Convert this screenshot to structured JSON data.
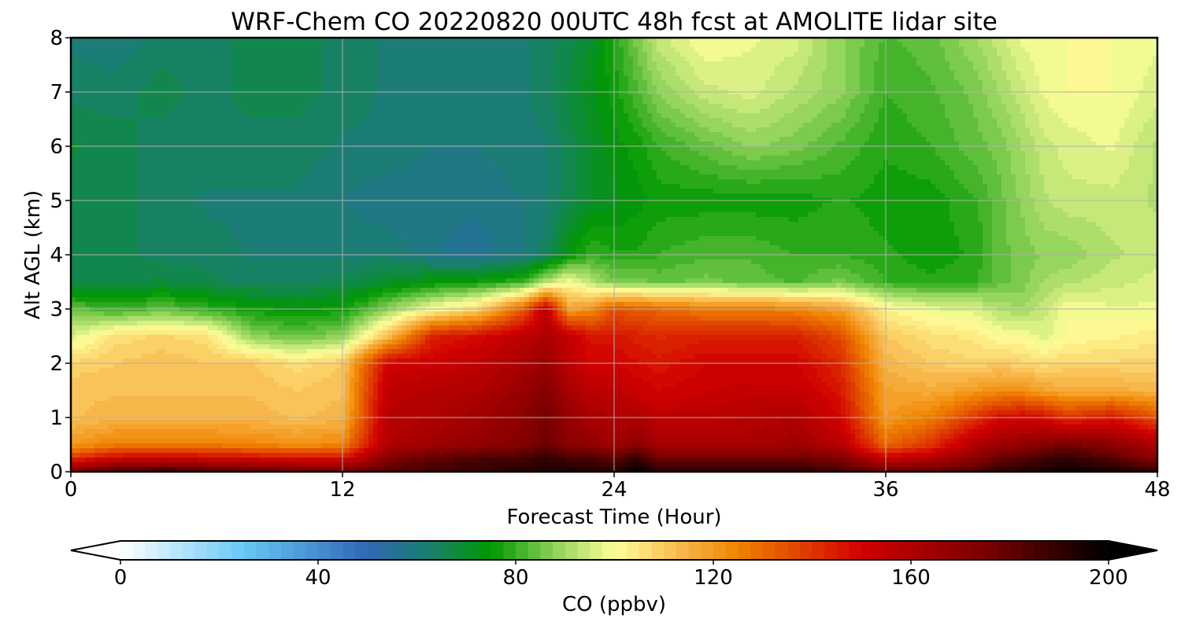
{
  "chart_data": {
    "type": "heatmap",
    "title": "WRF-Chem CO  20220820 00UTC 48h fcst at AMOLITE lidar site",
    "xlabel": "Forecast Time (Hour)",
    "ylabel": "Alt AGL (km)",
    "xlim": [
      0,
      48
    ],
    "ylim": [
      0,
      8
    ],
    "xticks": [
      0,
      12,
      24,
      36,
      48
    ],
    "yticks": [
      0,
      1,
      2,
      3,
      4,
      5,
      6,
      7,
      8
    ],
    "grid": true,
    "colorbar": {
      "label": "CO  (ppbv)",
      "range": [
        0,
        200
      ],
      "ticks": [
        0,
        40,
        80,
        120,
        160,
        200
      ],
      "extend": "both",
      "stops": [
        {
          "v": 0,
          "c": "#ffffff"
        },
        {
          "v": 25,
          "c": "#66c8f5"
        },
        {
          "v": 50,
          "c": "#2f68b5"
        },
        {
          "v": 62,
          "c": "#1b7e72"
        },
        {
          "v": 75,
          "c": "#009900"
        },
        {
          "v": 88,
          "c": "#8fd25a"
        },
        {
          "v": 100,
          "c": "#ffff99"
        },
        {
          "v": 112,
          "c": "#f9bf55"
        },
        {
          "v": 125,
          "c": "#f08300"
        },
        {
          "v": 150,
          "c": "#d10000"
        },
        {
          "v": 175,
          "c": "#7a0000"
        },
        {
          "v": 200,
          "c": "#000000"
        }
      ]
    },
    "x": [
      0,
      2,
      4,
      6,
      8,
      10,
      12,
      14,
      16,
      18,
      20,
      21,
      22,
      23,
      24,
      25,
      26,
      28,
      30,
      32,
      34,
      36,
      38,
      40,
      41,
      42,
      43,
      44,
      46,
      48
    ],
    "y": [
      0,
      0.25,
      0.5,
      1,
      1.5,
      2,
      2.5,
      3,
      3.5,
      4,
      5,
      6,
      7,
      8
    ],
    "z": [
      [
        175,
        186,
        190,
        186,
        183,
        180,
        178,
        183,
        187,
        190,
        192,
        194,
        194,
        194,
        192,
        200,
        191,
        190,
        190,
        191,
        188,
        180,
        180,
        186,
        190,
        192,
        195,
        198,
        196,
        190
      ],
      [
        140,
        150,
        152,
        150,
        148,
        146,
        146,
        172,
        180,
        184,
        186,
        190,
        186,
        184,
        180,
        190,
        178,
        176,
        176,
        178,
        172,
        152,
        158,
        170,
        178,
        182,
        186,
        190,
        182,
        170
      ],
      [
        120,
        126,
        126,
        126,
        124,
        122,
        124,
        160,
        164,
        168,
        172,
        178,
        170,
        168,
        164,
        170,
        162,
        162,
        162,
        164,
        158,
        130,
        140,
        160,
        165,
        168,
        172,
        176,
        170,
        160
      ],
      [
        112,
        114,
        114,
        114,
        114,
        112,
        114,
        158,
        160,
        164,
        170,
        176,
        166,
        162,
        160,
        160,
        156,
        156,
        158,
        160,
        150,
        120,
        126,
        140,
        148,
        150,
        148,
        140,
        146,
        134
      ],
      [
        112,
        112,
        112,
        112,
        112,
        110,
        112,
        156,
        158,
        160,
        166,
        172,
        162,
        156,
        156,
        152,
        150,
        152,
        154,
        154,
        146,
        118,
        116,
        120,
        122,
        122,
        118,
        116,
        116,
        114
      ],
      [
        108,
        110,
        112,
        110,
        110,
        106,
        110,
        150,
        152,
        156,
        162,
        166,
        156,
        150,
        150,
        148,
        146,
        150,
        150,
        150,
        142,
        114,
        110,
        108,
        110,
        108,
        106,
        108,
        108,
        108
      ],
      [
        96,
        106,
        108,
        106,
        88,
        84,
        88,
        112,
        144,
        148,
        156,
        160,
        154,
        146,
        146,
        144,
        142,
        144,
        144,
        144,
        136,
        110,
        106,
        104,
        100,
        100,
        96,
        100,
        102,
        104
      ],
      [
        84,
        80,
        84,
        80,
        76,
        74,
        76,
        88,
        100,
        108,
        132,
        156,
        118,
        122,
        134,
        132,
        130,
        126,
        126,
        124,
        118,
        102,
        98,
        96,
        92,
        90,
        94,
        100,
        98,
        98
      ],
      [
        66,
        66,
        68,
        66,
        64,
        64,
        66,
        70,
        74,
        76,
        80,
        92,
        100,
        92,
        86,
        86,
        84,
        86,
        84,
        82,
        86,
        80,
        78,
        80,
        84,
        86,
        90,
        92,
        94,
        96
      ],
      [
        66,
        66,
        64,
        64,
        62,
        62,
        62,
        62,
        58,
        56,
        60,
        64,
        74,
        80,
        78,
        78,
        80,
        82,
        82,
        80,
        80,
        78,
        76,
        78,
        84,
        86,
        88,
        88,
        92,
        94
      ],
      [
        66,
        66,
        64,
        62,
        62,
        62,
        60,
        58,
        58,
        58,
        60,
        62,
        66,
        70,
        72,
        74,
        76,
        76,
        76,
        76,
        78,
        76,
        76,
        80,
        84,
        88,
        92,
        94,
        94,
        92
      ],
      [
        68,
        66,
        64,
        64,
        64,
        64,
        62,
        62,
        60,
        60,
        62,
        62,
        66,
        70,
        74,
        76,
        80,
        84,
        88,
        86,
        82,
        78,
        80,
        84,
        86,
        90,
        94,
        96,
        98,
        92
      ],
      [
        64,
        64,
        66,
        64,
        66,
        66,
        64,
        62,
        60,
        60,
        62,
        64,
        68,
        72,
        76,
        82,
        88,
        94,
        96,
        92,
        88,
        80,
        82,
        86,
        90,
        94,
        98,
        100,
        100,
        96
      ],
      [
        62,
        60,
        64,
        64,
        66,
        66,
        64,
        62,
        60,
        60,
        62,
        64,
        66,
        70,
        78,
        86,
        94,
        100,
        98,
        96,
        88,
        82,
        84,
        90,
        94,
        98,
        100,
        100,
        100,
        98
      ]
    ]
  }
}
